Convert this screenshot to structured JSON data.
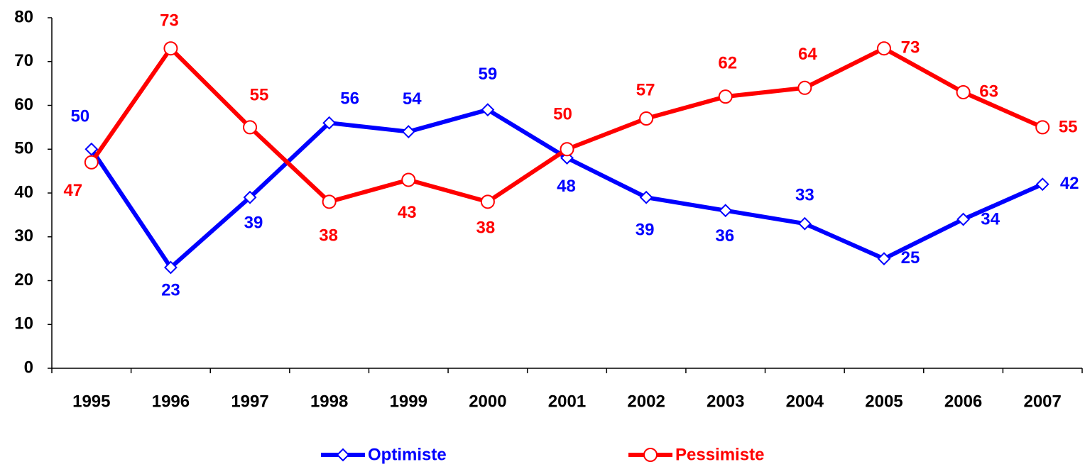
{
  "chart_data": {
    "type": "line",
    "categories": [
      "1995",
      "1996",
      "1997",
      "1998",
      "1999",
      "2000",
      "2001",
      "2002",
      "2003",
      "2004",
      "2005",
      "2006",
      "2007"
    ],
    "series": [
      {
        "name": "Optimiste",
        "color": "#0000ff",
        "marker": "diamond",
        "values": [
          50,
          23,
          39,
          56,
          54,
          59,
          48,
          39,
          36,
          33,
          25,
          34,
          42
        ]
      },
      {
        "name": "Pessimiste",
        "color": "#ff0000",
        "marker": "circle",
        "values": [
          47,
          73,
          55,
          38,
          43,
          38,
          50,
          57,
          62,
          64,
          73,
          63,
          55
        ]
      }
    ],
    "ylim": [
      0,
      80
    ],
    "yticks": [
      0,
      10,
      20,
      30,
      40,
      50,
      60,
      70,
      80
    ],
    "grid": false
  }
}
